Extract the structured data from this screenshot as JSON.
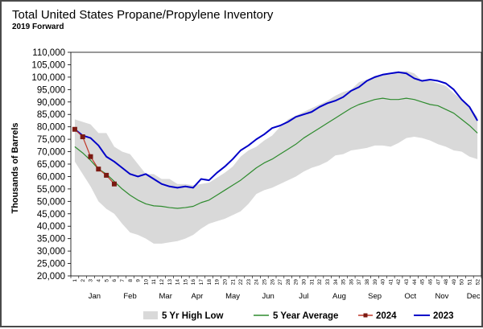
{
  "chart_data": {
    "type": "line",
    "title": "Total United States Propane/Propylene Inventory",
    "subtitle": "2019 Forward",
    "ylabel": "Thousands of Barrels",
    "xlabel": "",
    "ylim": [
      20000,
      110000
    ],
    "y_ticks": [
      "110,000",
      "105,000",
      "100,000",
      "95,000",
      "90,000",
      "85,000",
      "80,000",
      "75,000",
      "70,000",
      "65,000",
      "60,000",
      "55,000",
      "50,000",
      "45,000",
      "40,000",
      "35,000",
      "30,000",
      "25,000",
      "20,000"
    ],
    "weeks": [
      "1",
      "2",
      "3",
      "4",
      "5",
      "6",
      "7",
      "8",
      "9",
      "10",
      "11",
      "12",
      "13",
      "14",
      "15",
      "16",
      "17",
      "18",
      "19",
      "20",
      "21",
      "22",
      "23",
      "24",
      "25",
      "26",
      "27",
      "28",
      "29",
      "30",
      "31",
      "32",
      "33",
      "34",
      "35",
      "36",
      "37",
      "38",
      "39",
      "40",
      "41",
      "42",
      "43",
      "44",
      "45",
      "46",
      "47",
      "48",
      "49",
      "50",
      "51",
      "52"
    ],
    "months": [
      {
        "label": "Jan",
        "week": 3.5
      },
      {
        "label": "Feb",
        "week": 8
      },
      {
        "label": "Mar",
        "week": 12.5
      },
      {
        "label": "Apr",
        "week": 16.5
      },
      {
        "label": "May",
        "week": 21
      },
      {
        "label": "Jun",
        "week": 25.5
      },
      {
        "label": "Jul",
        "week": 30
      },
      {
        "label": "Aug",
        "week": 34.5
      },
      {
        "label": "Sep",
        "week": 39
      },
      {
        "label": "Oct",
        "week": 43.5
      },
      {
        "label": "Nov",
        "week": 47.5
      },
      {
        "label": "Dec",
        "week": 51.5
      }
    ],
    "grid": false,
    "legend_position": "bottom",
    "series": [
      {
        "name": "5 Yr High Low",
        "kind": "band",
        "color": "#d9d9d9",
        "high": [
          83000,
          82000,
          81000,
          77500,
          77500,
          72000,
          70000,
          69000,
          65000,
          61000,
          61000,
          59000,
          59000,
          57000,
          57000,
          56500,
          57000,
          57500,
          59500,
          61500,
          64000,
          68000,
          70500,
          72000,
          74500,
          76500,
          80000,
          83000,
          84500,
          86000,
          87500,
          89000,
          90500,
          92500,
          94000,
          95000,
          98000,
          99000,
          100500,
          101000,
          101000,
          102000,
          102500,
          101500,
          98500,
          98500,
          97500,
          96500,
          93500,
          91000,
          88000,
          84000
        ],
        "low": [
          66000,
          61000,
          56000,
          50000,
          47000,
          45000,
          41000,
          37500,
          36500,
          35000,
          33000,
          33000,
          33500,
          34000,
          35000,
          36500,
          39000,
          41000,
          42000,
          43000,
          44500,
          46000,
          49000,
          53000,
          54500,
          55500,
          57000,
          58500,
          60000,
          62000,
          63500,
          64500,
          66000,
          68500,
          69000,
          70500,
          71000,
          71500,
          72500,
          72500,
          72000,
          73500,
          75500,
          76000,
          75500,
          74500,
          73000,
          72000,
          70500,
          70000,
          68000,
          67000
        ]
      },
      {
        "name": "5 Year Average",
        "kind": "line",
        "color": "#2e8b2e",
        "values": [
          72000,
          69500,
          66500,
          63000,
          61000,
          58000,
          55000,
          52500,
          50500,
          49000,
          48200,
          48000,
          47500,
          47200,
          47500,
          48000,
          49500,
          50500,
          52500,
          54500,
          56500,
          58500,
          61000,
          63500,
          65500,
          67000,
          69000,
          71000,
          73000,
          75500,
          77500,
          79500,
          81500,
          83500,
          85500,
          87500,
          89000,
          90000,
          91000,
          91500,
          91000,
          91000,
          91500,
          91000,
          90000,
          89000,
          88500,
          87000,
          85500,
          83000,
          80500,
          77500
        ]
      },
      {
        "name": "2024",
        "kind": "line-marker",
        "color": "#c0392b",
        "marker_color": "#7b1a12",
        "values": [
          79000,
          76000,
          68000,
          63000,
          60500,
          57000
        ]
      },
      {
        "name": "2023",
        "kind": "line",
        "color": "#0000c8",
        "values": [
          79000,
          76500,
          75500,
          72500,
          68000,
          66000,
          63500,
          61000,
          60000,
          61000,
          59000,
          57000,
          56000,
          55500,
          56000,
          55500,
          59000,
          58500,
          61500,
          64000,
          67000,
          70500,
          72500,
          75000,
          77000,
          79500,
          80500,
          82000,
          84000,
          85000,
          86000,
          88000,
          89500,
          90500,
          92000,
          94500,
          96000,
          98500,
          100000,
          101000,
          101500,
          102000,
          101500,
          99500,
          98500,
          99000,
          98500,
          97500,
          95000,
          91000,
          88000,
          82500
        ]
      }
    ]
  }
}
